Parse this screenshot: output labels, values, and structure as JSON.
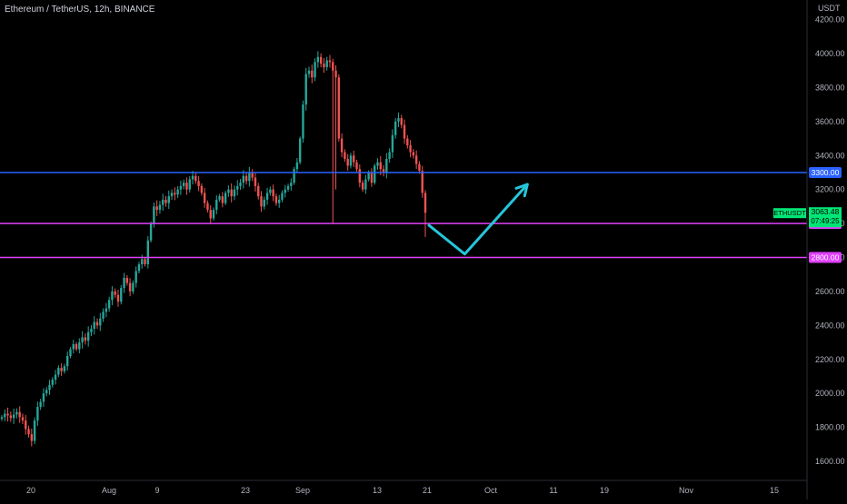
{
  "symbol_title": "Ethereum / TetherUS, 12h, BINANCE",
  "currency": "USDT",
  "ticker": "ETHUSDT",
  "last_price": "3063.48",
  "countdown": "07:49:25",
  "colors": {
    "background": "#000000",
    "up": "#26a69a",
    "down": "#ef5350",
    "blue_line": "#2962ff",
    "magenta_line": "#e040fb",
    "arrow": "#26c6da",
    "price_tag": "#00e676"
  },
  "chart_data": {
    "type": "candlestick",
    "x_tick_labels": [
      "20",
      "Aug",
      "9",
      "23",
      "Sep",
      "13",
      "21",
      "Oct",
      "11",
      "19",
      "Nov",
      "15"
    ],
    "y_tick_labels": [
      "4200.00",
      "4000.00",
      "3800.00",
      "3600.00",
      "3400.00",
      "3200.00",
      "3000.00",
      "2800.00",
      "2600.00",
      "2400.00",
      "2200.00",
      "2000.00",
      "1800.00",
      "1600.00"
    ],
    "ylim": [
      1560,
      4320
    ],
    "horizontal_levels": [
      {
        "label": "3300.00",
        "value": 3300,
        "color": "#2962ff"
      },
      {
        "label": "3000.00",
        "value": 3000,
        "color": "#e040fb"
      },
      {
        "label": "2800.00",
        "value": 2800,
        "color": "#e040fb"
      }
    ],
    "projection_path": [
      [
        0,
        3000
      ],
      [
        12,
        2820
      ],
      [
        33,
        3230
      ]
    ],
    "closes": [
      1860,
      1880,
      1870,
      1855,
      1875,
      1890,
      1860,
      1840,
      1790,
      1760,
      1720,
      1840,
      1920,
      1950,
      2000,
      2020,
      2050,
      2080,
      2110,
      2150,
      2130,
      2160,
      2220,
      2260,
      2290,
      2260,
      2300,
      2330,
      2310,
      2360,
      2380,
      2420,
      2400,
      2440,
      2480,
      2500,
      2550,
      2600,
      2580,
      2540,
      2620,
      2680,
      2650,
      2600,
      2650,
      2720,
      2760,
      2790,
      2760,
      2900,
      3000,
      3100,
      3080,
      3110,
      3140,
      3120,
      3160,
      3180,
      3170,
      3200,
      3220,
      3240,
      3200,
      3260,
      3280,
      3250,
      3220,
      3180,
      3120,
      3080,
      3030,
      3080,
      3140,
      3160,
      3120,
      3180,
      3200,
      3160,
      3200,
      3220,
      3240,
      3280,
      3250,
      3300,
      3270,
      3220,
      3160,
      3100,
      3140,
      3180,
      3200,
      3160,
      3120,
      3140,
      3180,
      3200,
      3220,
      3240,
      3320,
      3360,
      3500,
      3700,
      3880,
      3900,
      3860,
      3950,
      3980,
      3940,
      3920,
      3960,
      3950,
      3900,
      3860,
      3500,
      3420,
      3380,
      3340,
      3400,
      3360,
      3320,
      3240,
      3200,
      3260,
      3300,
      3240,
      3340,
      3360,
      3320,
      3300,
      3380,
      3420,
      3520,
      3600,
      3620,
      3580,
      3500,
      3460,
      3420,
      3400,
      3350,
      3310,
      3180,
      3063
    ]
  }
}
